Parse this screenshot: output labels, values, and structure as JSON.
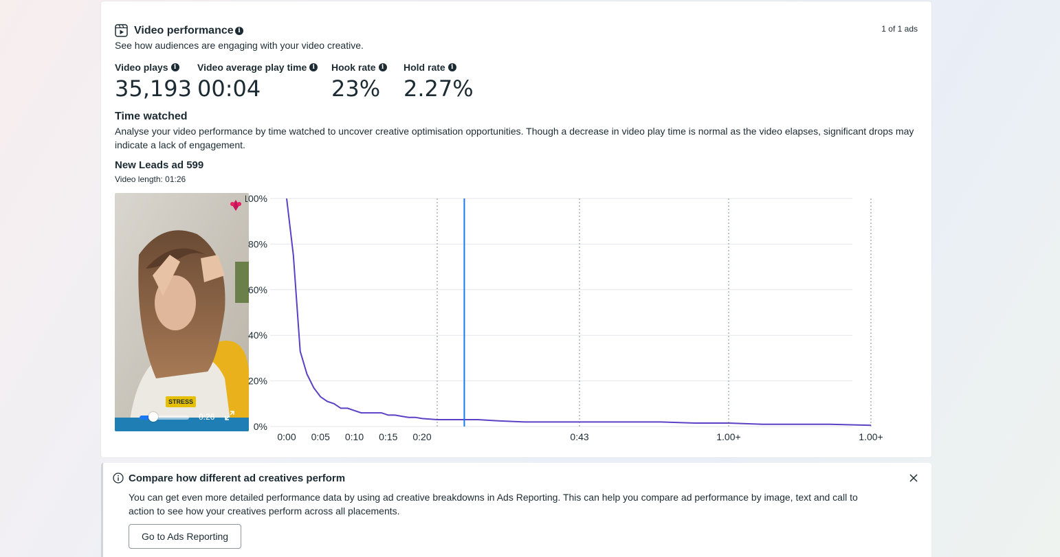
{
  "video_performance": {
    "title": "Video performance",
    "subtitle": "See how audiences are engaging with your video creative.",
    "pagination": "1 of 1 ads",
    "metrics": [
      {
        "label": "Video plays",
        "value": "35,193"
      },
      {
        "label": "Video average play time",
        "value": "00:04"
      },
      {
        "label": "Hook rate",
        "value": "23%"
      },
      {
        "label": "Hold rate",
        "value": "2.27%"
      }
    ],
    "time_watched": {
      "heading": "Time watched",
      "description": "Analyse your video performance by time watched to uncover creative optimisation opportunities. Though a decrease in video play time is normal as the video elapses, significant drops may indicate a lack of engagement."
    },
    "ad": {
      "name": "New Leads ad 599",
      "video_length": "Video length: 01:26",
      "overlay_caption": "STRESS",
      "player_time": "0:26",
      "progress": 0.3
    }
  },
  "chart_data": {
    "type": "line",
    "title": "",
    "xlabel": "",
    "ylabel": "",
    "y_ticks": [
      "0%",
      "20%",
      "40%",
      "60%",
      "80%",
      "100%"
    ],
    "ylim": [
      0,
      100
    ],
    "x_ticks": [
      "0:00",
      "0:05",
      "0:10",
      "0:15",
      "0:20",
      "0:43",
      "1.00+",
      "1.00+"
    ],
    "xlim": [
      0,
      86
    ],
    "grid": true,
    "series": [
      {
        "color": "#5b3fc4",
        "x": [
          0,
          1,
          2,
          3,
          4,
          5,
          6,
          7,
          8,
          9,
          10,
          11,
          12,
          13,
          14,
          15,
          16,
          17,
          18,
          19,
          20,
          22,
          25,
          28,
          31,
          35,
          40,
          45,
          50,
          55,
          60,
          65,
          70,
          75,
          80,
          86
        ],
        "y": [
          100,
          75,
          33,
          23,
          17,
          13,
          11,
          10,
          8,
          8,
          7,
          6,
          6,
          6,
          6,
          5,
          5,
          4.5,
          4,
          4,
          3.5,
          3,
          3,
          3,
          2.5,
          2,
          2,
          2,
          2,
          2,
          1.5,
          1.5,
          1,
          1,
          1,
          0.5
        ]
      }
    ],
    "current_position_x": 26
  },
  "compare_banner": {
    "title": "Compare how different ad creatives perform",
    "body": "You can get even more detailed performance data by using ad creative breakdowns in Ads Reporting. This can help you compare ad performance by image, text and call to action to see how your creatives perform across all placements.",
    "button": "Go to Ads Reporting"
  },
  "colors": {
    "line": "#5b3fc4",
    "marker": "#1877f2",
    "text": "#1c2b33"
  }
}
